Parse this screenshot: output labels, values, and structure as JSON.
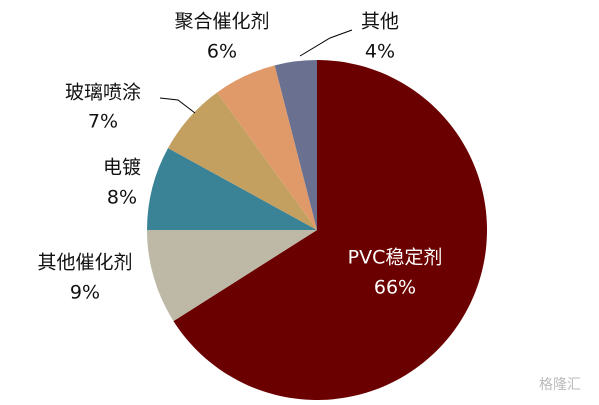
{
  "chart_data": {
    "type": "pie",
    "categories": [
      "PVC稳定剂",
      "其他催化剂",
      "电镀",
      "玻璃喷涂",
      "聚合催化剂",
      "其他"
    ],
    "values": [
      66,
      9,
      8,
      7,
      6,
      4
    ],
    "value_labels": [
      "66%",
      "9%",
      "8%",
      "7%",
      "6%",
      "4%"
    ],
    "colors": [
      "#6b0000",
      "#bdb9a6",
      "#3a8296",
      "#c4a060",
      "#e09a6a",
      "#6a7090"
    ],
    "start_angle": 0,
    "direction": "clockwise",
    "watermark": "格隆汇"
  }
}
